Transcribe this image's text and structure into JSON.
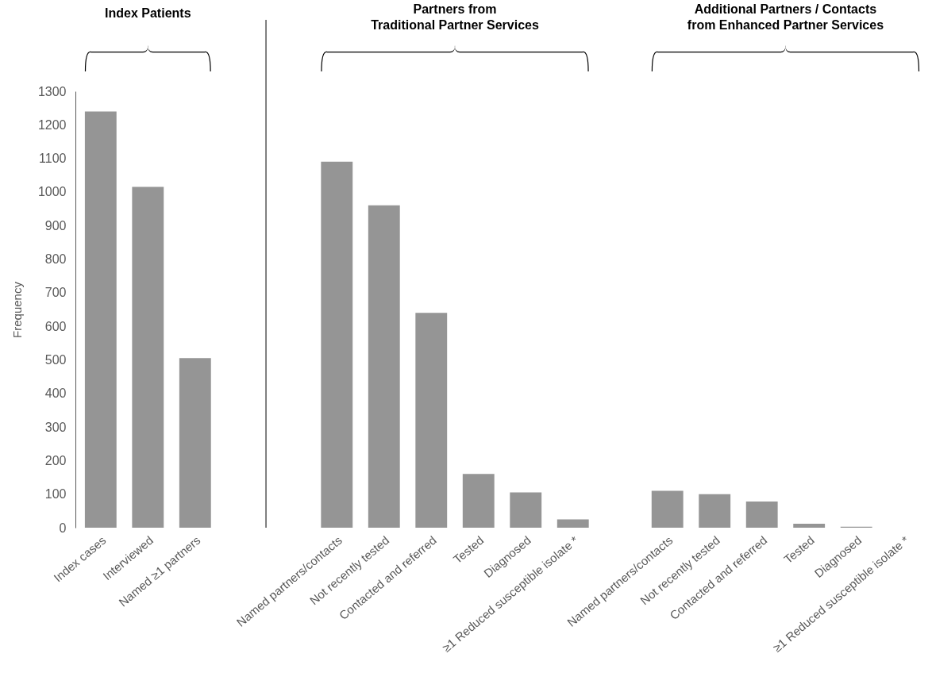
{
  "chart_data": {
    "type": "bar",
    "ylabel": "Frequency",
    "categories": [
      "Index cases",
      "Interviewed",
      "Named ≥1 partners",
      null,
      null,
      "Named partners/contacts",
      "Not recently tested",
      "Contacted and referred",
      "Tested",
      "Diagnosed",
      "≥1 Reduced susceptible isolate *",
      null,
      "Named partners/contacts",
      "Not recently tested",
      "Contacted and referred",
      "Tested",
      "Diagnosed",
      "≥1 Reduced susceptible isolate *"
    ],
    "values": [
      1240,
      1015,
      505,
      null,
      null,
      1090,
      960,
      640,
      160,
      105,
      25,
      null,
      110,
      100,
      78,
      12,
      3,
      0
    ],
    "color": "#959595",
    "ylim": [
      0,
      1300
    ],
    "yticks": [
      0,
      100,
      200,
      300,
      400,
      500,
      600,
      700,
      800,
      900,
      1000,
      1100,
      1200,
      1300
    ],
    "annotations": [
      "Index Patients",
      "Partners from\nTraditional Partner Services",
      "Additional Partners / Contacts\nfrom Enhanced Partner Services"
    ]
  }
}
